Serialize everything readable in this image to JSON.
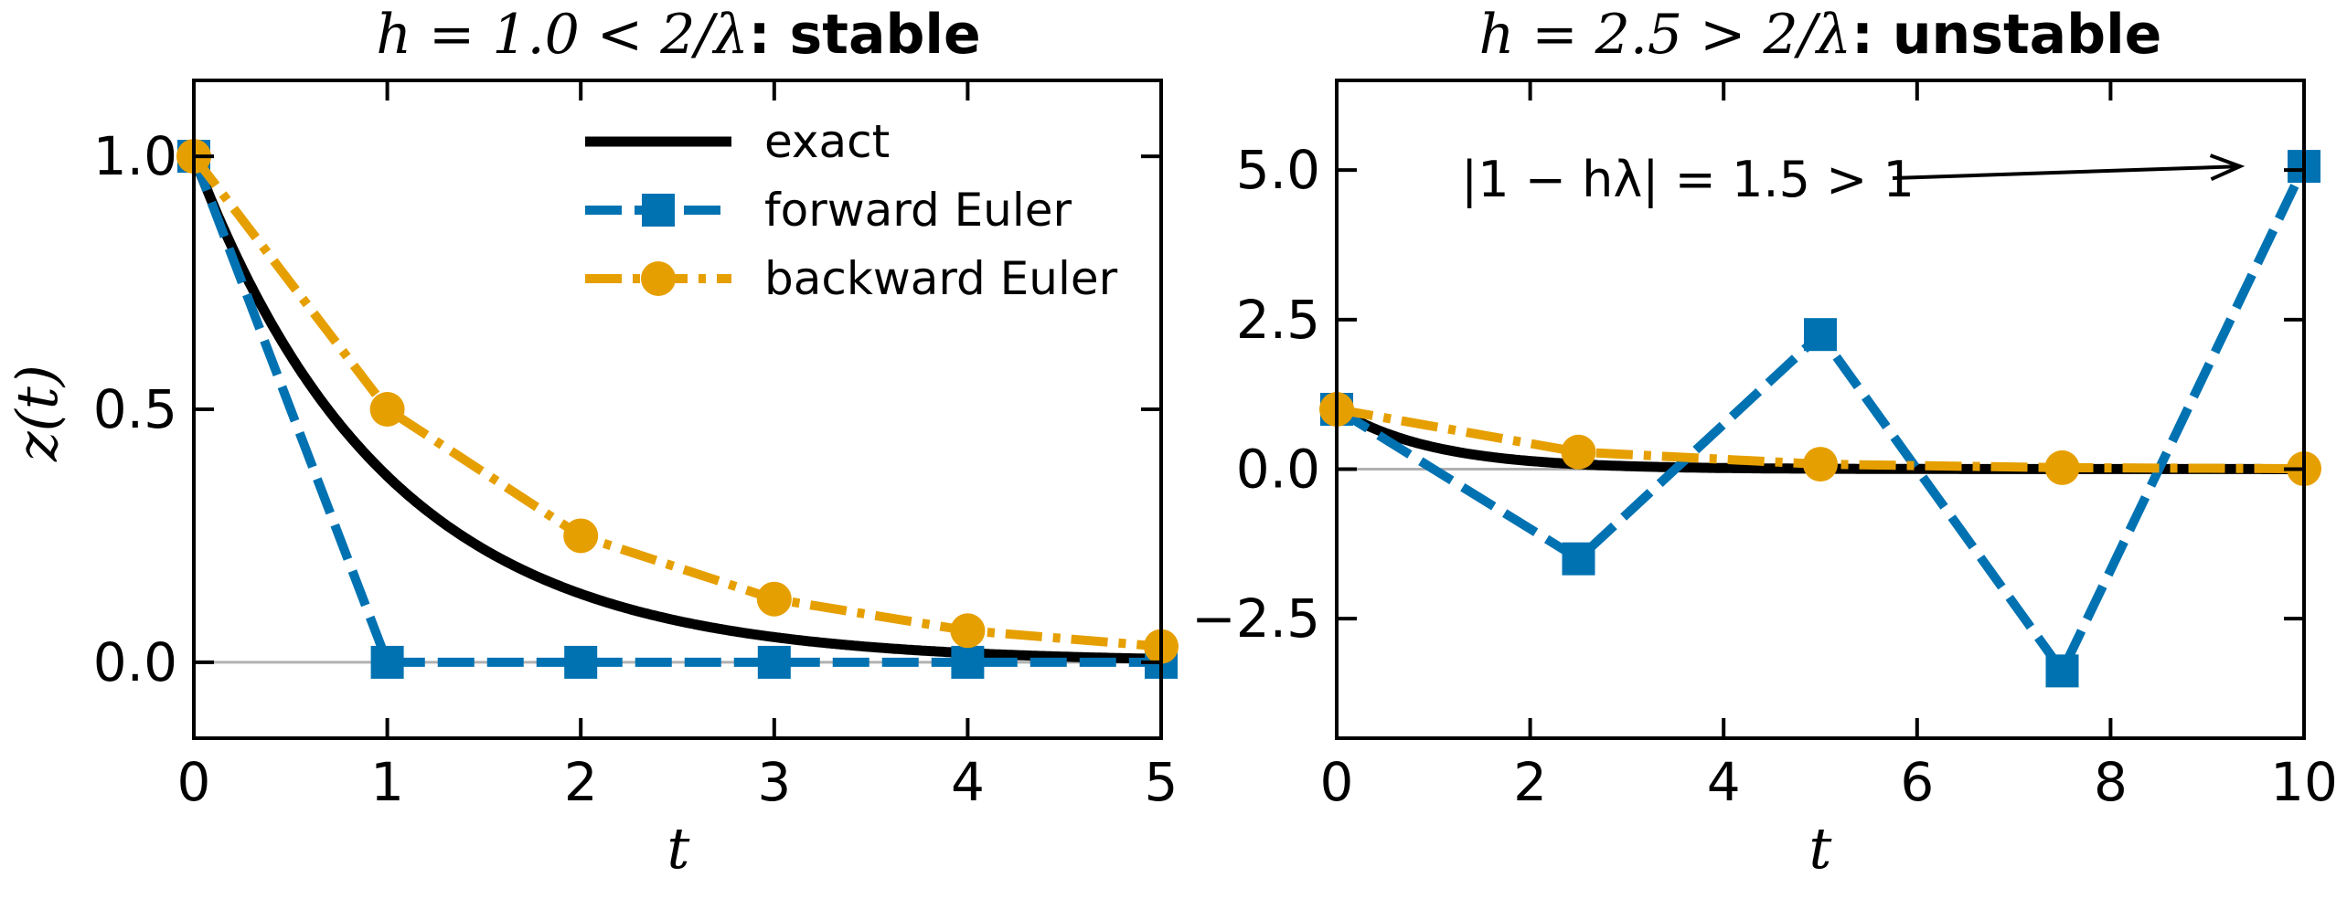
{
  "colors": {
    "exact": "#000000",
    "forward": "#0072B2",
    "backward": "#E69F00",
    "zero_line": "#b0b0b0"
  },
  "legend": {
    "exact": "exact",
    "forward": "forward Euler",
    "backward": "backward Euler"
  },
  "chart_data": [
    {
      "type": "line",
      "title_math": "h = 1.0 < 2/λ",
      "title_bold": ": stable",
      "xlabel": "t",
      "ylabel": "z(t)",
      "xlim": [
        0,
        5
      ],
      "ylim": [
        -0.15,
        1.15
      ],
      "xticks": [
        0,
        1,
        2,
        3,
        4,
        5
      ],
      "yticks": [
        0.0,
        0.5,
        1.0
      ],
      "ytick_labels": [
        "0.0",
        "0.5",
        "1.0"
      ],
      "legend_position": "top-right",
      "exact_lambda": 1.0,
      "series": [
        {
          "name": "forward Euler",
          "x": [
            0,
            1,
            2,
            3,
            4,
            5
          ],
          "y": [
            1.0,
            0.0,
            0.0,
            0.0,
            0.0,
            0.0
          ]
        },
        {
          "name": "backward Euler",
          "x": [
            0,
            1,
            2,
            3,
            4,
            5
          ],
          "y": [
            1.0,
            0.5,
            0.25,
            0.125,
            0.0625,
            0.03125
          ]
        }
      ]
    },
    {
      "type": "line",
      "title_math": "h = 2.5 > 2/λ",
      "title_bold": ": unstable",
      "xlabel": "t",
      "ylabel": "",
      "xlim": [
        0,
        10
      ],
      "ylim": [
        -4.5,
        6.5
      ],
      "xticks": [
        0,
        2,
        4,
        6,
        8,
        10
      ],
      "yticks": [
        -2.5,
        0.0,
        2.5,
        5.0
      ],
      "ytick_labels": [
        "−2.5",
        "0.0",
        "2.5",
        "5.0"
      ],
      "annotation": "|1 − hλ| = 1.5 > 1",
      "exact_lambda": 1.0,
      "series": [
        {
          "name": "forward Euler",
          "x": [
            0,
            2.5,
            5,
            7.5,
            10
          ],
          "y": [
            1.0,
            -1.5,
            2.25,
            -3.375,
            5.0625
          ]
        },
        {
          "name": "backward Euler",
          "x": [
            0,
            2.5,
            5,
            7.5,
            10
          ],
          "y": [
            1.0,
            0.2857,
            0.0816,
            0.0233,
            0.0067
          ]
        }
      ]
    }
  ]
}
